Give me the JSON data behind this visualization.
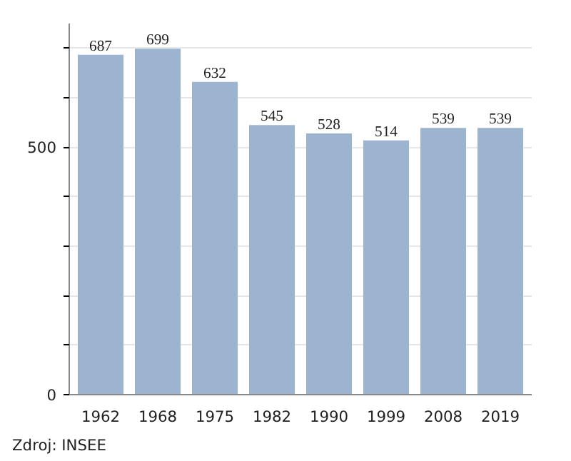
{
  "chart_data": {
    "type": "bar",
    "categories": [
      "1962",
      "1968",
      "1975",
      "1982",
      "1990",
      "1999",
      "2008",
      "2019"
    ],
    "values": [
      687,
      699,
      632,
      545,
      528,
      514,
      539,
      539
    ],
    "color": "#9cb4cf",
    "data_labels": true,
    "ylim": [
      0,
      750
    ],
    "yticks": [
      0,
      {
        "value": 100,
        "label": null
      },
      {
        "value": 200,
        "label": null
      },
      {
        "value": 300,
        "label": null
      },
      {
        "value": 400,
        "label": null
      },
      500,
      {
        "value": 600,
        "label": null
      },
      {
        "value": 700,
        "label": null
      }
    ],
    "grid": "y",
    "annotations": [
      "Zdroj: INSEE"
    ]
  }
}
